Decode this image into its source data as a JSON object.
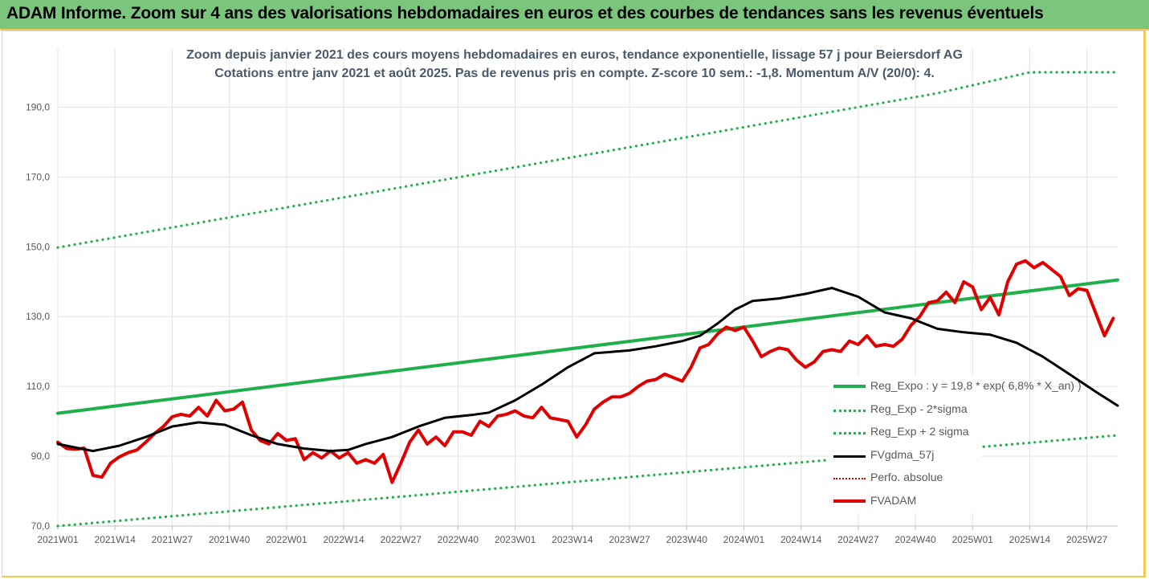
{
  "header": {
    "banner": "ADAM Informe. Zoom sur 4 ans des valorisations hebdomadaires en euros et des courbes de tendances sans les revenus éventuels"
  },
  "chart_data": {
    "type": "line",
    "title": "Zoom depuis janvier 2021 des cours moyens hebdomadaires en euros, tendance exponentielle, lissage 57 j pour Beiersdorf AG",
    "subtitle": "Cotations entre janv 2021 et août 2025. Pas de revenus pris en compte. Z-score 10 sem.: -1,8. Momentum A/V (20/0): 4.",
    "ylim": [
      70,
      200
    ],
    "yticks": [
      70,
      90,
      110,
      130,
      150,
      170,
      190
    ],
    "ytick_labels": [
      "70,0",
      "90,0",
      "110,0",
      "130,0",
      "150,0",
      "170,0",
      "190,0"
    ],
    "x_tick_labels": [
      "2021W01",
      "2021W14",
      "2021W27",
      "2021W40",
      "2022W01",
      "2022W14",
      "2022W27",
      "2022W40",
      "2023W01",
      "2023W14",
      "2023W27",
      "2023W40",
      "2024W01",
      "2024W14",
      "2024W27",
      "2024W40",
      "2025W01",
      "2025W14",
      "2025W27"
    ],
    "x_tick_index": [
      0,
      13,
      26,
      39,
      52,
      65,
      78,
      91,
      104,
      117,
      130,
      143,
      156,
      169,
      182,
      195,
      208,
      221,
      234
    ],
    "n_weeks": 242,
    "grid": true,
    "legend_position": "bottom-right",
    "series": [
      {
        "name": "Reg_Expo : y = 19,8 * exp( 6,8% *  X_an) )",
        "style": "solid-thick",
        "color": "#1fb04b",
        "points": [
          [
            0,
            102.3
          ],
          [
            241,
            140.5
          ]
        ]
      },
      {
        "name": "Reg_Exp - 2*sigma",
        "style": "dotted",
        "color": "#1fb04b",
        "points": [
          [
            0,
            70.0
          ],
          [
            241,
            96.0
          ]
        ]
      },
      {
        "name": "Reg_Exp + 2 sigma",
        "style": "dotted",
        "color": "#1fb04b",
        "points": [
          [
            0,
            149.8
          ],
          [
            200,
            194.0
          ],
          [
            221,
            200.0
          ],
          [
            241,
            200.0
          ]
        ]
      },
      {
        "name": "FVgdma_57j",
        "style": "solid",
        "color": "#000000",
        "points": [
          [
            0,
            93.5
          ],
          [
            8,
            91.5
          ],
          [
            14,
            93
          ],
          [
            20,
            95.5
          ],
          [
            26,
            98.5
          ],
          [
            32,
            99.7
          ],
          [
            38,
            99
          ],
          [
            44,
            96
          ],
          [
            50,
            93.5
          ],
          [
            56,
            92.2
          ],
          [
            62,
            91.5
          ],
          [
            66,
            91.8
          ],
          [
            70,
            93.5
          ],
          [
            76,
            95.5
          ],
          [
            82,
            98.5
          ],
          [
            88,
            101
          ],
          [
            94,
            101.8
          ],
          [
            98,
            102.5
          ],
          [
            104,
            106
          ],
          [
            110,
            110.5
          ],
          [
            116,
            115.5
          ],
          [
            122,
            119.5
          ],
          [
            130,
            120.3
          ],
          [
            136,
            121.5
          ],
          [
            142,
            123
          ],
          [
            146,
            124.5
          ],
          [
            150,
            128
          ],
          [
            154,
            132
          ],
          [
            158,
            134.5
          ],
          [
            164,
            135.2
          ],
          [
            170,
            136.5
          ],
          [
            176,
            138.2
          ],
          [
            182,
            135.7
          ],
          [
            188,
            131.2
          ],
          [
            194,
            129.5
          ],
          [
            200,
            126.5
          ],
          [
            206,
            125.5
          ],
          [
            212,
            124.8
          ],
          [
            218,
            122.5
          ],
          [
            224,
            118.5
          ],
          [
            230,
            113.5
          ],
          [
            236,
            108.5
          ],
          [
            241,
            104.5
          ]
        ]
      },
      {
        "name": "Perfo. absolue",
        "style": "dotted",
        "color": "#e00000",
        "points": []
      },
      {
        "name": "FVADAM",
        "style": "solid-thick",
        "color": "#e00000",
        "points": [
          [
            0,
            94
          ],
          [
            2,
            92.2
          ],
          [
            4,
            92
          ],
          [
            6,
            92.3
          ],
          [
            8,
            84.5
          ],
          [
            10,
            84
          ],
          [
            12,
            88
          ],
          [
            14,
            89.8
          ],
          [
            16,
            91
          ],
          [
            18,
            91.8
          ],
          [
            20,
            94
          ],
          [
            22,
            96.5
          ],
          [
            24,
            98.5
          ],
          [
            26,
            101.3
          ],
          [
            28,
            102
          ],
          [
            30,
            101.5
          ],
          [
            32,
            104
          ],
          [
            34,
            101.5
          ],
          [
            36,
            106
          ],
          [
            38,
            103
          ],
          [
            40,
            103.5
          ],
          [
            42,
            105.5
          ],
          [
            44,
            97.5
          ],
          [
            46,
            94.5
          ],
          [
            48,
            93.5
          ],
          [
            50,
            96.5
          ],
          [
            52,
            94.5
          ],
          [
            54,
            95
          ],
          [
            56,
            89
          ],
          [
            58,
            91
          ],
          [
            60,
            89.5
          ],
          [
            62,
            91.5
          ],
          [
            64,
            89.5
          ],
          [
            66,
            91
          ],
          [
            68,
            88
          ],
          [
            70,
            89
          ],
          [
            72,
            88
          ],
          [
            74,
            90.5
          ],
          [
            76,
            82.5
          ],
          [
            78,
            88
          ],
          [
            80,
            94
          ],
          [
            82,
            97.5
          ],
          [
            84,
            93.5
          ],
          [
            86,
            95.5
          ],
          [
            88,
            93
          ],
          [
            90,
            97
          ],
          [
            92,
            97
          ],
          [
            94,
            96
          ],
          [
            96,
            100
          ],
          [
            98,
            98.5
          ],
          [
            100,
            101.5
          ],
          [
            102,
            102
          ],
          [
            104,
            103
          ],
          [
            106,
            101.5
          ],
          [
            108,
            101
          ],
          [
            110,
            104
          ],
          [
            112,
            101
          ],
          [
            114,
            100.5
          ],
          [
            116,
            100
          ],
          [
            118,
            95.5
          ],
          [
            120,
            99
          ],
          [
            122,
            103.5
          ],
          [
            124,
            105.5
          ],
          [
            126,
            107
          ],
          [
            128,
            107
          ],
          [
            130,
            108
          ],
          [
            132,
            110
          ],
          [
            134,
            111.5
          ],
          [
            136,
            112
          ],
          [
            138,
            113.5
          ],
          [
            140,
            112.5
          ],
          [
            142,
            111.5
          ],
          [
            144,
            115.5
          ],
          [
            146,
            121
          ],
          [
            148,
            122
          ],
          [
            150,
            125
          ],
          [
            152,
            127
          ],
          [
            154,
            126
          ],
          [
            156,
            127
          ],
          [
            158,
            123
          ],
          [
            160,
            118.5
          ],
          [
            162,
            120
          ],
          [
            164,
            121
          ],
          [
            166,
            120.5
          ],
          [
            168,
            117.5
          ],
          [
            170,
            115.5
          ],
          [
            172,
            117
          ],
          [
            174,
            120
          ],
          [
            176,
            120.5
          ],
          [
            178,
            120
          ],
          [
            180,
            123
          ],
          [
            182,
            122
          ],
          [
            184,
            124.5
          ],
          [
            186,
            121.5
          ],
          [
            188,
            122
          ],
          [
            190,
            121.5
          ],
          [
            192,
            123.5
          ],
          [
            194,
            127.5
          ],
          [
            196,
            130
          ],
          [
            198,
            134
          ],
          [
            200,
            134.5
          ],
          [
            202,
            137
          ],
          [
            204,
            134
          ],
          [
            206,
            140
          ],
          [
            208,
            138.5
          ],
          [
            210,
            132
          ],
          [
            212,
            135.5
          ],
          [
            214,
            130.5
          ],
          [
            216,
            140
          ],
          [
            218,
            145
          ],
          [
            220,
            146
          ],
          [
            222,
            144
          ],
          [
            224,
            145.5
          ],
          [
            226,
            143.5
          ],
          [
            228,
            141.5
          ],
          [
            230,
            136
          ],
          [
            232,
            138
          ],
          [
            234,
            137.5
          ],
          [
            236,
            131
          ],
          [
            238,
            124.5
          ],
          [
            240,
            129.5
          ]
        ]
      }
    ]
  }
}
